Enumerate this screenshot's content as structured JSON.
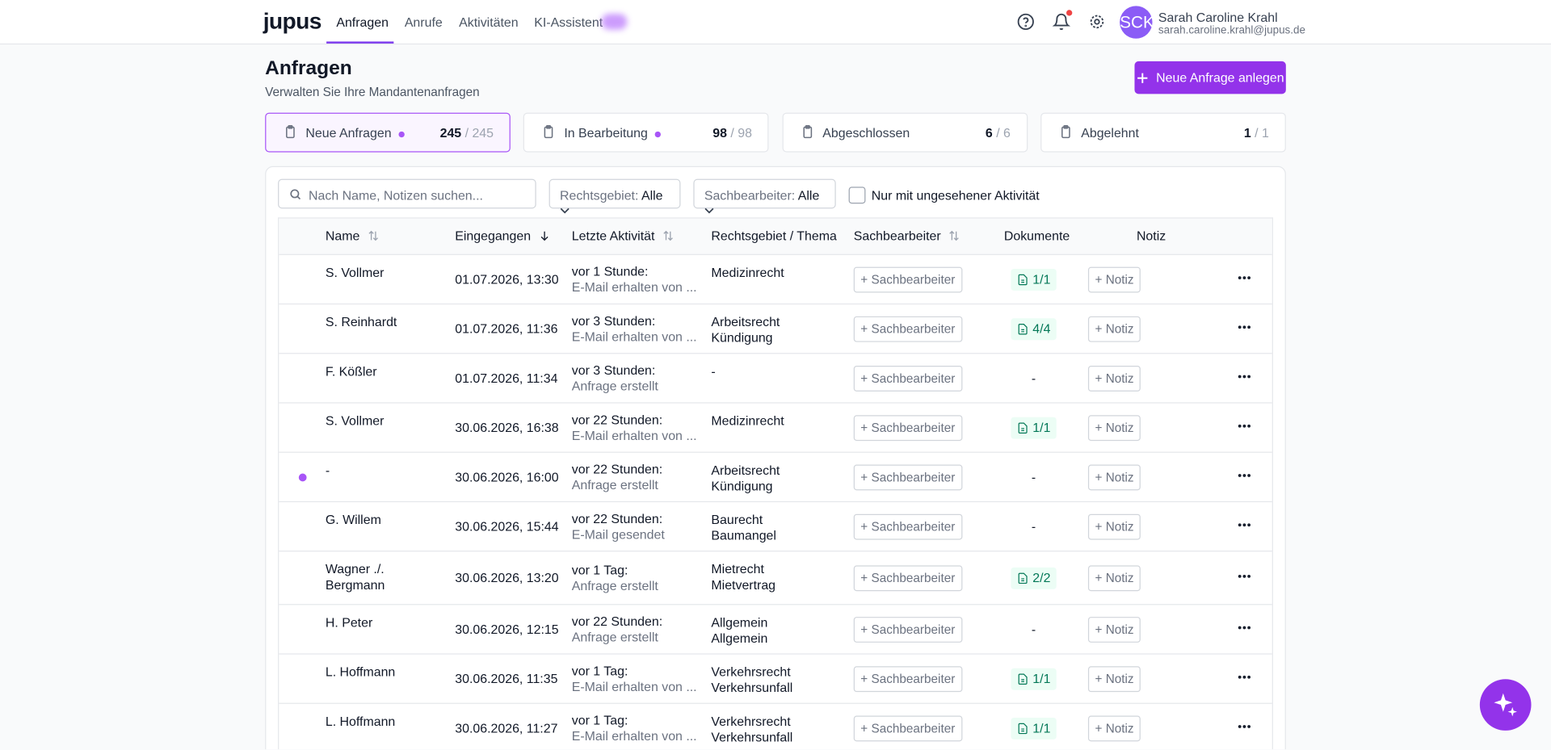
{
  "nav": {
    "logo": "jupus",
    "items": [
      "Anfragen",
      "Anrufe",
      "Aktivitäten",
      "KI-Assistent"
    ],
    "user": {
      "initials": "SCK",
      "name": "Sarah Caroline Krahl",
      "email": "sarah.caroline.krahl@jupus.de"
    }
  },
  "header": {
    "title": "Anfragen",
    "subtitle": "Verwalten Sie Ihre Mandantenanfragen",
    "button": "Neue Anfrage anlegen"
  },
  "stats": [
    {
      "label": "Neue Anfragen",
      "count": "245",
      "total": "/ 245"
    },
    {
      "label": "In Bearbeitung",
      "count": "98",
      "total": "/ 98"
    },
    {
      "label": "Abgeschlossen",
      "count": "6",
      "total": "/ 6"
    },
    {
      "label": "Abgelehnt",
      "count": "1",
      "total": "/ 1"
    }
  ],
  "filters": {
    "search": "Nach Name, Notizen suchen...",
    "area_label": "Rechtsgebiet:",
    "area_value": "Alle",
    "clerk_label": "Sachbearbeiter:",
    "clerk_value": "Alle",
    "unseen": "Nur mit ungesehener Aktivität"
  },
  "table": {
    "columns": [
      "Name",
      "Eingegangen",
      "Letzte Aktivität",
      "Rechtsgebiet / Thema",
      "Sachbearbeiter",
      "Dokumente",
      "Notiz"
    ],
    "row_actions": {
      "assign": "+ Sachbearbeiter",
      "note": "+ Notiz"
    },
    "rows": [
      {
        "name": "S. Vollmer",
        "received": "01.07.2026, 13:30",
        "activity_time": "vor 1 Stunde:",
        "activity": "E-Mail erhalten von ...",
        "topic": [
          "Medizinrecht"
        ],
        "docs": "1/1",
        "unread": false
      },
      {
        "name": "S. Reinhardt",
        "received": "01.07.2026, 11:36",
        "activity_time": "vor 3 Stunden:",
        "activity": "E-Mail erhalten von ...",
        "topic": [
          "Arbeitsrecht",
          "Kündigung"
        ],
        "docs": "4/4",
        "unread": false
      },
      {
        "name": "F. Kößler",
        "received": "01.07.2026, 11:34",
        "activity_time": "vor 3 Stunden:",
        "activity": "Anfrage erstellt",
        "topic": [
          "-"
        ],
        "docs": "-",
        "unread": false
      },
      {
        "name": "S. Vollmer",
        "received": "30.06.2026, 16:38",
        "activity_time": "vor 22 Stunden:",
        "activity": "E-Mail erhalten von ...",
        "topic": [
          "Medizinrecht"
        ],
        "docs": "1/1",
        "unread": false
      },
      {
        "name": "-",
        "received": "30.06.2026, 16:00",
        "activity_time": "vor 22 Stunden:",
        "activity": "Anfrage erstellt",
        "topic": [
          "Arbeitsrecht",
          "Kündigung"
        ],
        "docs": "-",
        "unread": true
      },
      {
        "name": "G. Willem",
        "received": "30.06.2026, 15:44",
        "activity_time": "vor 22 Stunden:",
        "activity": "E-Mail gesendet",
        "topic": [
          "Baurecht",
          "Baumangel"
        ],
        "docs": "-",
        "unread": false
      },
      {
        "name": "Wagner ./. Bergmann",
        "received": "30.06.2026, 13:20",
        "activity_time": "vor 1 Tag:",
        "activity": "Anfrage erstellt",
        "topic": [
          "Mietrecht",
          "Mietvertrag"
        ],
        "docs": "2/2",
        "unread": false
      },
      {
        "name": "H. Peter",
        "received": "30.06.2026, 12:15",
        "activity_time": "vor 22 Stunden:",
        "activity": "Anfrage erstellt",
        "topic": [
          "Allgemein",
          "Allgemein"
        ],
        "docs": "-",
        "unread": false
      },
      {
        "name": "L. Hoffmann",
        "received": "30.06.2026, 11:35",
        "activity_time": "vor 1 Tag:",
        "activity": "E-Mail erhalten von ...",
        "topic": [
          "Verkehrsrecht",
          "Verkehrsunfall"
        ],
        "docs": "1/1",
        "unread": false
      },
      {
        "name": "L. Hoffmann",
        "received": "30.06.2026, 11:27",
        "activity_time": "vor 1 Tag:",
        "activity": "E-Mail erhalten von ...",
        "topic": [
          "Verkehrsrecht",
          "Verkehrsunfall"
        ],
        "docs": "1/1",
        "unread": false
      }
    ]
  }
}
